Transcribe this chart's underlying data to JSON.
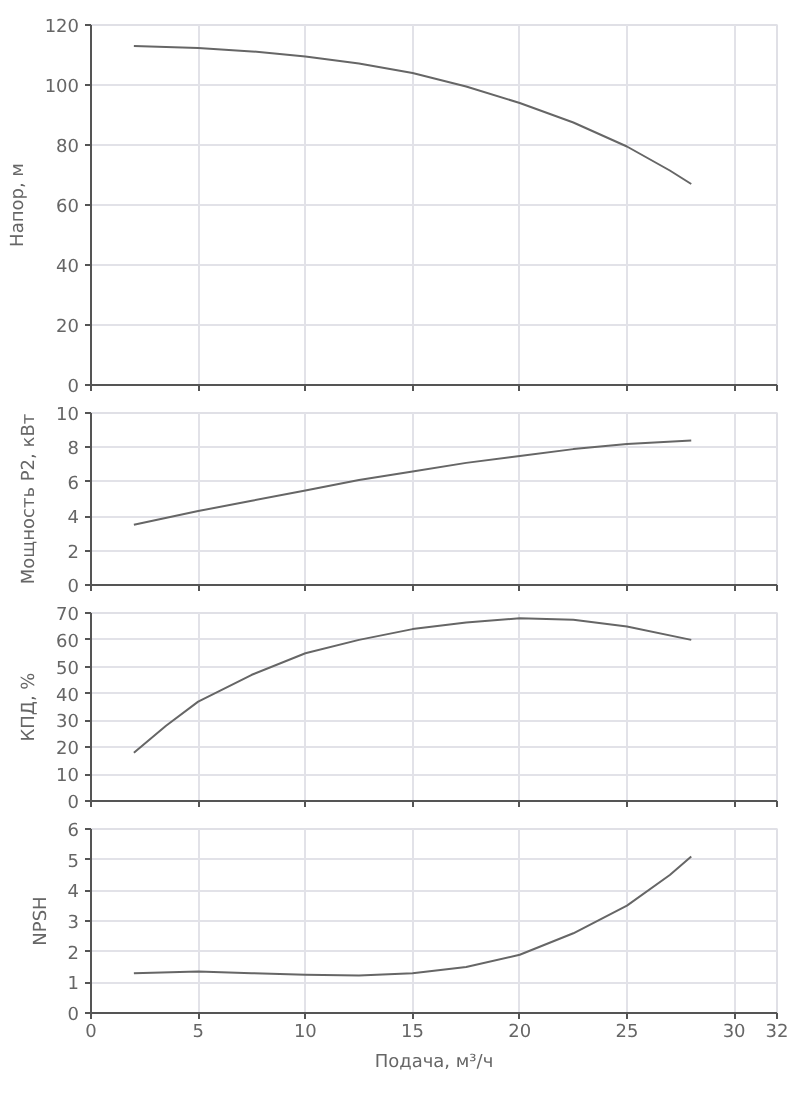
{
  "chart_data": [
    {
      "type": "line",
      "ylabel": "Напор, м",
      "xlim": [
        0,
        32
      ],
      "xticks": [
        0,
        5,
        10,
        15,
        20,
        25,
        30,
        32
      ],
      "ylim": [
        0,
        120
      ],
      "yticks": [
        0,
        20,
        40,
        60,
        80,
        100,
        120
      ],
      "grid": true,
      "tick_labels": "y",
      "marker": "none",
      "line_style": "solid",
      "series": [
        {
          "color": "#666666",
          "x": [
            2,
            5,
            7.5,
            10,
            12.5,
            15,
            17.5,
            20,
            22.5,
            25,
            27,
            28
          ],
          "values": [
            113,
            112.3,
            111.2,
            109.5,
            107.2,
            104,
            99.5,
            94,
            87.5,
            79.5,
            71.5,
            67
          ]
        }
      ]
    },
    {
      "type": "line",
      "ylabel": "Мощность P2, кВт",
      "xlim": [
        0,
        32
      ],
      "xticks": [
        0,
        5,
        10,
        15,
        20,
        25,
        30,
        32
      ],
      "ylim": [
        0,
        10
      ],
      "yticks": [
        0,
        2,
        4,
        6,
        8,
        10
      ],
      "grid": true,
      "tick_labels": "y",
      "marker": "none",
      "line_style": "solid",
      "series": [
        {
          "color": "#666666",
          "x": [
            2,
            5,
            7.5,
            10,
            12.5,
            15,
            17.5,
            20,
            22.5,
            25,
            28
          ],
          "values": [
            3.5,
            4.3,
            4.9,
            5.5,
            6.1,
            6.6,
            7.1,
            7.5,
            7.9,
            8.2,
            8.4
          ]
        }
      ]
    },
    {
      "type": "line",
      "ylabel": "КПД, %",
      "xlim": [
        0,
        32
      ],
      "xticks": [
        0,
        5,
        10,
        15,
        20,
        25,
        30,
        32
      ],
      "ylim": [
        0,
        70
      ],
      "yticks": [
        0,
        10,
        20,
        30,
        40,
        50,
        60,
        70
      ],
      "grid": true,
      "tick_labels": "y",
      "marker": "none",
      "line_style": "solid",
      "series": [
        {
          "color": "#666666",
          "x": [
            2,
            3.5,
            5,
            7.5,
            10,
            12.5,
            15,
            17.5,
            20,
            22.5,
            25,
            28
          ],
          "values": [
            18,
            28,
            37,
            47,
            55,
            60,
            64,
            66.5,
            68,
            67.5,
            65,
            60
          ]
        }
      ]
    },
    {
      "type": "line",
      "xlabel": "Подача, м³/ч",
      "ylabel": "NPSH",
      "xlim": [
        0,
        32
      ],
      "xticks": [
        0,
        5,
        10,
        15,
        20,
        25,
        30,
        32
      ],
      "ylim": [
        0,
        6
      ],
      "yticks": [
        0,
        1,
        2,
        3,
        4,
        5,
        6
      ],
      "grid": true,
      "marker": "none",
      "line_style": "solid",
      "series": [
        {
          "color": "#666666",
          "x": [
            2,
            5,
            7.5,
            10,
            12.5,
            15,
            17.5,
            20,
            22.5,
            25,
            27,
            28
          ],
          "values": [
            1.3,
            1.35,
            1.3,
            1.25,
            1.22,
            1.3,
            1.5,
            1.9,
            2.6,
            3.5,
            4.5,
            5.1
          ]
        }
      ]
    }
  ]
}
